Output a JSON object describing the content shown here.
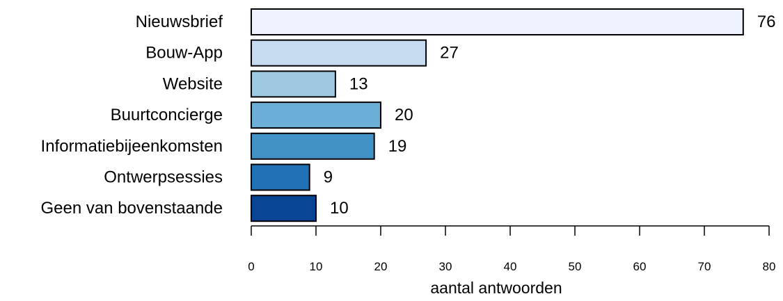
{
  "chart_data": {
    "type": "bar",
    "orientation": "horizontal",
    "categories": [
      "Nieuwsbrief",
      "Bouw-App",
      "Website",
      "Buurtconcierge",
      "Informatiebijeenkomsten",
      "Ontwerpsessies",
      "Geen van bovenstaande"
    ],
    "values": [
      76,
      27,
      13,
      20,
      19,
      9,
      10
    ],
    "value_labels": [
      "76",
      "27",
      "13",
      "20",
      "19",
      "9",
      "10"
    ],
    "colors": [
      "#eff3ff",
      "#c6dbef",
      "#9ecae1",
      "#6baed6",
      "#4292c6",
      "#2171b5",
      "#084594"
    ],
    "bar_outline_color": "#000000",
    "xlabel": "aantal antwoorden",
    "ylabel": "",
    "title": "",
    "xlim": [
      0,
      80
    ],
    "x_ticks": [
      "0",
      "10",
      "20",
      "30",
      "40",
      "50",
      "60",
      "70",
      "80"
    ],
    "grid": false,
    "legend": "none"
  }
}
